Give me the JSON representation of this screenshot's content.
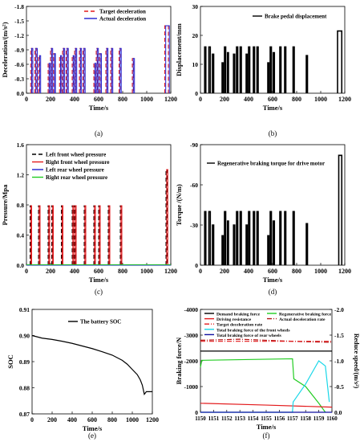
{
  "colors": {
    "axis": "#000000",
    "red": "#e31a1c",
    "blue": "#2020d0",
    "black": "#000000",
    "green": "#22cc22",
    "cyan": "#19d7e8",
    "darkred": "#b01515",
    "navy": "#1010a0"
  },
  "chart_data": [
    {
      "id": "a",
      "type": "line",
      "caption": "(a)",
      "xlabel": "Time/s",
      "ylabel": "Deceleration/(m/s²)",
      "xlim": [
        0,
        1200
      ],
      "ylim": [
        0.0,
        -1.8
      ],
      "xticks": [
        "0",
        "200",
        "400",
        "600",
        "800",
        "1000",
        "1200"
      ],
      "yticks": [
        "0.0",
        "-0.3",
        "-0.6",
        "-0.9",
        "-1.2",
        "-1.5",
        "-1.8"
      ],
      "legend_position": "top-right",
      "series": [
        {
          "name": "Target deceleration",
          "style": "dashed",
          "color": "red"
        },
        {
          "name": "Actual deceleration",
          "style": "solid",
          "color": "blue"
        }
      ],
      "pulses": [
        {
          "x": 35,
          "w": 10,
          "h": -0.93
        },
        {
          "x": 70,
          "w": 12,
          "h": -0.93
        },
        {
          "x": 100,
          "w": 10,
          "h": -0.78
        },
        {
          "x": 180,
          "w": 10,
          "h": -0.62
        },
        {
          "x": 200,
          "w": 10,
          "h": -0.93
        },
        {
          "x": 225,
          "w": 8,
          "h": -0.82
        },
        {
          "x": 275,
          "w": 10,
          "h": -0.78
        },
        {
          "x": 300,
          "w": 10,
          "h": -0.93
        },
        {
          "x": 330,
          "w": 10,
          "h": -0.93
        },
        {
          "x": 380,
          "w": 10,
          "h": -0.78
        },
        {
          "x": 400,
          "w": 10,
          "h": -0.93
        },
        {
          "x": 440,
          "w": 10,
          "h": -0.93
        },
        {
          "x": 470,
          "w": 10,
          "h": -0.93
        },
        {
          "x": 560,
          "w": 10,
          "h": -0.62
        },
        {
          "x": 580,
          "w": 10,
          "h": -0.93
        },
        {
          "x": 605,
          "w": 10,
          "h": -0.82
        },
        {
          "x": 660,
          "w": 10,
          "h": -0.93
        },
        {
          "x": 700,
          "w": 10,
          "h": -0.93
        },
        {
          "x": 770,
          "w": 10,
          "h": -0.93
        },
        {
          "x": 880,
          "w": 10,
          "h": -0.72
        },
        {
          "x": 1150,
          "w": 30,
          "h": -1.4
        }
      ]
    },
    {
      "id": "b",
      "type": "line",
      "caption": "(b)",
      "xlabel": "Time/s",
      "ylabel": "Displacement/mm",
      "xlim": [
        0,
        1200
      ],
      "ylim": [
        0,
        30
      ],
      "xticks": [
        "0",
        "200",
        "400",
        "600",
        "800",
        "1000",
        "1200"
      ],
      "yticks": [
        "0",
        "10",
        "20",
        "30"
      ],
      "legend_position": "top-right",
      "series": [
        {
          "name": "Brake pedal displacement",
          "style": "solid",
          "color": "black"
        }
      ],
      "pulses": [
        {
          "x": 35,
          "w": 10,
          "h": 16
        },
        {
          "x": 70,
          "w": 12,
          "h": 16
        },
        {
          "x": 100,
          "w": 10,
          "h": 13.5
        },
        {
          "x": 180,
          "w": 10,
          "h": 10.5
        },
        {
          "x": 200,
          "w": 10,
          "h": 16
        },
        {
          "x": 225,
          "w": 8,
          "h": 14
        },
        {
          "x": 275,
          "w": 10,
          "h": 13.5
        },
        {
          "x": 300,
          "w": 10,
          "h": 16
        },
        {
          "x": 330,
          "w": 10,
          "h": 16
        },
        {
          "x": 380,
          "w": 10,
          "h": 13.5
        },
        {
          "x": 400,
          "w": 10,
          "h": 16
        },
        {
          "x": 440,
          "w": 10,
          "h": 16
        },
        {
          "x": 470,
          "w": 10,
          "h": 16
        },
        {
          "x": 560,
          "w": 10,
          "h": 10.5
        },
        {
          "x": 580,
          "w": 10,
          "h": 16
        },
        {
          "x": 605,
          "w": 10,
          "h": 14
        },
        {
          "x": 660,
          "w": 10,
          "h": 16
        },
        {
          "x": 700,
          "w": 10,
          "h": 16
        },
        {
          "x": 770,
          "w": 10,
          "h": 16
        },
        {
          "x": 880,
          "w": 10,
          "h": 13
        },
        {
          "x": 1140,
          "w": 35,
          "h": 21.5
        }
      ]
    },
    {
      "id": "c",
      "type": "line",
      "caption": "(c)",
      "xlabel": "Time/s",
      "ylabel": "Pressure/Mpa",
      "xlim": [
        0,
        1200
      ],
      "ylim": [
        0.0,
        1.6
      ],
      "xticks": [
        "0",
        "200",
        "400",
        "600",
        "800",
        "1000",
        "1200"
      ],
      "yticks": [
        "0.0",
        "0.4",
        "0.8",
        "1.2",
        "1.6"
      ],
      "legend_position": "top-left",
      "series": [
        {
          "name": "Left front wheel pressure",
          "style": "dashed",
          "color": "black"
        },
        {
          "name": "Right front wheel pressure",
          "style": "solid",
          "color": "red"
        },
        {
          "name": "Left rear wheel pressure",
          "style": "solid",
          "color": "blue"
        },
        {
          "name": "Right rear wheel pressure",
          "style": "solid",
          "color": "green"
        }
      ],
      "pulses": [
        {
          "x": 30,
          "w": 8,
          "h": 0.79
        },
        {
          "x": 100,
          "w": 8,
          "h": 0.79
        },
        {
          "x": 180,
          "w": 8,
          "h": 0.79
        },
        {
          "x": 210,
          "w": 8,
          "h": 0.79
        },
        {
          "x": 290,
          "w": 8,
          "h": 0.79
        },
        {
          "x": 380,
          "w": 8,
          "h": 0.79
        },
        {
          "x": 400,
          "w": 8,
          "h": 0.79
        },
        {
          "x": 480,
          "w": 8,
          "h": 0.79
        },
        {
          "x": 560,
          "w": 8,
          "h": 0.79
        },
        {
          "x": 600,
          "w": 8,
          "h": 0.79
        },
        {
          "x": 680,
          "w": 8,
          "h": 0.79
        },
        {
          "x": 780,
          "w": 8,
          "h": 0.79
        },
        {
          "x": 1160,
          "w": 10,
          "h": 1.27
        }
      ]
    },
    {
      "id": "d",
      "type": "line",
      "caption": "(d)",
      "xlabel": "Time/s",
      "ylabel": "Torque /(N/m)",
      "xlim": [
        0,
        1200
      ],
      "ylim": [
        0,
        -90
      ],
      "xticks": [
        "0",
        "200",
        "400",
        "600",
        "800",
        "1000",
        "1200"
      ],
      "yticks": [
        "0",
        "-30",
        "-60",
        "-90"
      ],
      "legend_position": "top-left",
      "series": [
        {
          "name": "Regenerative braking torque for drive motor",
          "style": "solid",
          "color": "black"
        }
      ],
      "pulses": [
        {
          "x": 35,
          "w": 10,
          "h": -40
        },
        {
          "x": 70,
          "w": 12,
          "h": -40
        },
        {
          "x": 100,
          "w": 10,
          "h": -30
        },
        {
          "x": 180,
          "w": 10,
          "h": -22
        },
        {
          "x": 200,
          "w": 10,
          "h": -40
        },
        {
          "x": 225,
          "w": 8,
          "h": -33
        },
        {
          "x": 275,
          "w": 10,
          "h": -30
        },
        {
          "x": 300,
          "w": 10,
          "h": -40
        },
        {
          "x": 330,
          "w": 10,
          "h": -40
        },
        {
          "x": 380,
          "w": 10,
          "h": -30
        },
        {
          "x": 400,
          "w": 10,
          "h": -40
        },
        {
          "x": 440,
          "w": 10,
          "h": -40
        },
        {
          "x": 470,
          "w": 10,
          "h": -40
        },
        {
          "x": 560,
          "w": 10,
          "h": -22
        },
        {
          "x": 580,
          "w": 10,
          "h": -40
        },
        {
          "x": 605,
          "w": 10,
          "h": -33
        },
        {
          "x": 660,
          "w": 10,
          "h": -40
        },
        {
          "x": 700,
          "w": 10,
          "h": -40
        },
        {
          "x": 770,
          "w": 10,
          "h": -40
        },
        {
          "x": 880,
          "w": 10,
          "h": -31
        },
        {
          "x": 1150,
          "w": 25,
          "h": -82
        }
      ]
    },
    {
      "id": "e",
      "type": "line",
      "caption": "(e)",
      "xlabel": "Time/s",
      "ylabel": "SOC",
      "xlim": [
        0,
        1200
      ],
      "ylim": [
        0.87,
        0.91
      ],
      "xticks": [
        "0",
        "200",
        "400",
        "600",
        "800",
        "1000",
        "1200"
      ],
      "yticks": [
        "0.87",
        "0.88",
        "0.89",
        "0.90",
        "0.91"
      ],
      "legend_position": "top-right",
      "series": [
        {
          "name": "The battery SOC",
          "style": "solid",
          "color": "black",
          "x": [
            0,
            50,
            100,
            200,
            300,
            400,
            500,
            600,
            700,
            800,
            850,
            900,
            950,
            1000,
            1050,
            1080,
            1100,
            1120,
            1140,
            1160,
            1200
          ],
          "y": [
            0.9,
            0.8995,
            0.899,
            0.8985,
            0.8978,
            0.897,
            0.896,
            0.895,
            0.8938,
            0.8925,
            0.8915,
            0.8905,
            0.889,
            0.887,
            0.885,
            0.883,
            0.881,
            0.8775,
            0.8785,
            0.8785,
            0.8785
          ]
        }
      ]
    },
    {
      "id": "f",
      "type": "line",
      "caption": "(f)",
      "xlabel": "Time/s",
      "ylabel": "Braking force/N",
      "y2label": "Reduce speed/(m/s²)",
      "xlim": [
        1150,
        1160
      ],
      "ylim": [
        0,
        -4000
      ],
      "y2lim": [
        0.0,
        -2.0
      ],
      "xticks": [
        "1150",
        "1151",
        "1152",
        "1153",
        "1154",
        "1155",
        "1156",
        "1157",
        "1158",
        "1159",
        "1160"
      ],
      "yticks": [
        "0",
        "-1000",
        "-2000",
        "-3000",
        "-4000"
      ],
      "y2ticks": [
        "0.0",
        "-0.5",
        "-1.0",
        "-1.5",
        "-2.0"
      ],
      "legend_position": "top",
      "series": [
        {
          "name": "Demand braking force",
          "style": "solid",
          "color": "black",
          "axis": "left",
          "x": [
            1150,
            1160
          ],
          "y": [
            -2380,
            -2380
          ]
        },
        {
          "name": "Regenerative braking force",
          "style": "solid",
          "color": "green",
          "axis": "left",
          "x": [
            1150,
            1150.1,
            1157,
            1157.1,
            1158,
            1159,
            1159.5
          ],
          "y": [
            -1750,
            -2020,
            -2080,
            -1300,
            -1000,
            -350,
            0
          ]
        },
        {
          "name": "Driving resistance",
          "style": "solid",
          "color": "red",
          "axis": "left",
          "x": [
            1150,
            1155,
            1160
          ],
          "y": [
            -350,
            -280,
            -200
          ]
        },
        {
          "name": "Actual deceleration rate",
          "style": "dashdot",
          "color": "darkred",
          "axis": "right",
          "x": [
            1150,
            1153,
            1156,
            1158,
            1160
          ],
          "y": [
            -1.4,
            -1.42,
            -1.39,
            -1.37,
            -1.36
          ]
        },
        {
          "name": "Target deceleration rate",
          "style": "dashdot",
          "color": "red",
          "axis": "right",
          "x": [
            1150,
            1160
          ],
          "y": [
            -1.38,
            -1.38
          ]
        },
        {
          "name": "Total braking force of the front wheels",
          "style": "solid",
          "color": "cyan",
          "axis": "left",
          "x": [
            1150,
            1157,
            1157.05,
            1158,
            1159,
            1159.5,
            1159.8
          ],
          "y": [
            0,
            0,
            -400,
            -1100,
            -2000,
            -1800,
            -400
          ]
        },
        {
          "name": "Total braking force of rear wheels",
          "style": "solid",
          "color": "navy",
          "axis": "left",
          "x": [
            1150,
            1160
          ],
          "y": [
            0,
            0
          ]
        }
      ]
    }
  ]
}
